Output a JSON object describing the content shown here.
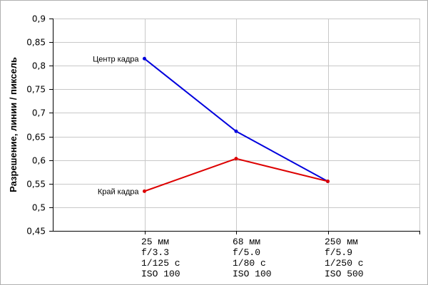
{
  "chart_data": {
    "type": "line",
    "title": "",
    "xlabel": "",
    "ylabel": "Разрешение, линии / пиксель",
    "ylim": [
      0.45,
      0.9
    ],
    "y_ticks": [
      "0,45",
      "0,5",
      "0,55",
      "0,6",
      "0,65",
      "0,7",
      "0,75",
      "0,8",
      "0,85",
      "0,9"
    ],
    "grid": true,
    "categories": [
      [
        "25 мм",
        "f/3.3",
        "1/125 с",
        "ISO 100"
      ],
      [
        "68 мм",
        "f/5.0",
        "1/80 с",
        "ISO 100"
      ],
      [
        "250 мм",
        "f/5.9",
        "1/250 с",
        "ISO 500"
      ]
    ],
    "series": [
      {
        "name": "Центр кадра",
        "color": "#0000dd",
        "values": [
          0.815,
          0.661,
          0.555
        ]
      },
      {
        "name": "Край кадра",
        "color": "#dd0000",
        "values": [
          0.534,
          0.603,
          0.555
        ]
      }
    ]
  }
}
